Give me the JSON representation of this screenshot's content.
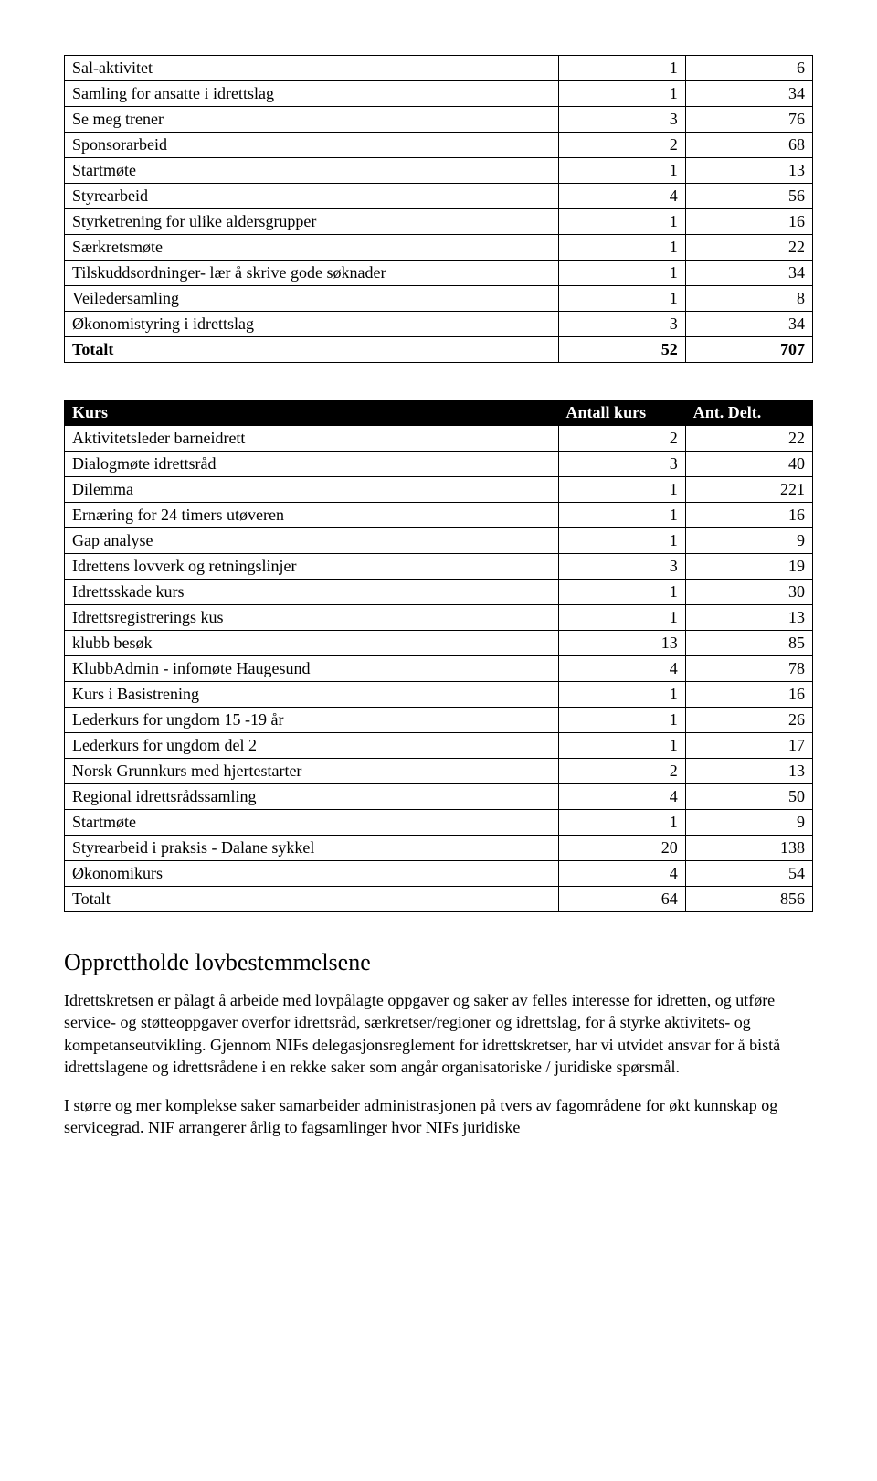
{
  "table1": {
    "rows": [
      {
        "label": "Sal-aktivitet",
        "c1": "1",
        "c2": "6"
      },
      {
        "label": "Samling for ansatte i idrettslag",
        "c1": "1",
        "c2": "34"
      },
      {
        "label": "Se meg trener",
        "c1": "3",
        "c2": "76"
      },
      {
        "label": "Sponsorarbeid",
        "c1": "2",
        "c2": "68"
      },
      {
        "label": "Startmøte",
        "c1": "1",
        "c2": "13"
      },
      {
        "label": "Styrearbeid",
        "c1": "4",
        "c2": "56"
      },
      {
        "label": "Styrketrening for ulike aldersgrupper",
        "c1": "1",
        "c2": "16"
      },
      {
        "label": "Særkretsmøte",
        "c1": "1",
        "c2": "22"
      },
      {
        "label": "Tilskuddsordninger- lær å skrive gode søknader",
        "c1": "1",
        "c2": "34"
      },
      {
        "label": "Veiledersamling",
        "c1": "1",
        "c2": "8"
      },
      {
        "label": "Økonomistyring i idrettslag",
        "c1": "3",
        "c2": "34"
      }
    ],
    "total": {
      "label": "Totalt",
      "c1": "52",
      "c2": "707"
    }
  },
  "table2": {
    "header": {
      "label": "Kurs",
      "c1": "Antall kurs",
      "c2": "Ant. Delt."
    },
    "rows": [
      {
        "label": "Aktivitetsleder barneidrett",
        "c1": "2",
        "c2": "22"
      },
      {
        "label": "Dialogmøte idrettsråd",
        "c1": "3",
        "c2": "40"
      },
      {
        "label": "Dilemma",
        "c1": "1",
        "c2": "221"
      },
      {
        "label": "Ernæring for 24 timers utøveren",
        "c1": "1",
        "c2": "16"
      },
      {
        "label": "Gap analyse",
        "c1": "1",
        "c2": "9"
      },
      {
        "label": "Idrettens lovverk og retningslinjer",
        "c1": "3",
        "c2": "19"
      },
      {
        "label": "Idrettsskade kurs",
        "c1": "1",
        "c2": "30"
      },
      {
        "label": "Idrettsregistrerings kus",
        "c1": "1",
        "c2": "13"
      },
      {
        "label": "klubb besøk",
        "c1": "13",
        "c2": "85"
      },
      {
        "label": "KlubbAdmin - infomøte Haugesund",
        "c1": "4",
        "c2": "78"
      },
      {
        "label": "Kurs i Basistrening",
        "c1": "1",
        "c2": "16"
      },
      {
        "label": "Lederkurs for ungdom  15 -19 år",
        "c1": "1",
        "c2": "26"
      },
      {
        "label": "Lederkurs for ungdom del 2",
        "c1": "1",
        "c2": "17"
      },
      {
        "label": "Norsk Grunnkurs med hjertestarter",
        "c1": "2",
        "c2": "13"
      },
      {
        "label": "Regional idrettsrådssamling",
        "c1": "4",
        "c2": "50"
      },
      {
        "label": "Startmøte",
        "c1": "1",
        "c2": "9"
      },
      {
        "label": "Styrearbeid i praksis - Dalane sykkel",
        "c1": "20",
        "c2": "138"
      },
      {
        "label": "Økonomikurs",
        "c1": "4",
        "c2": "54"
      }
    ],
    "total": {
      "label": "Totalt",
      "c1": "64",
      "c2": "856"
    }
  },
  "section_heading": "Opprettholde lovbestemmelsene",
  "para1": "Idrettskretsen er pålagt å arbeide med lovpålagte oppgaver og saker av felles interesse for idretten, og utføre service- og støtteoppgaver overfor idrettsråd, særkretser/regioner og idrettslag, for å styrke aktivitets- og kompetanseutvikling. Gjennom NIFs delegasjonsreglement for idrettskretser, har vi utvidet ansvar for å bistå idrettslagene og idrettsrådene i en rekke saker som angår organisatoriske / juridiske spørsmål.",
  "para2": "I større og mer komplekse saker samarbeider administrasjonen på tvers av fagområdene for økt kunnskap og servicegrad. NIF arrangerer årlig to fagsamlinger hvor NIFs juridiske"
}
